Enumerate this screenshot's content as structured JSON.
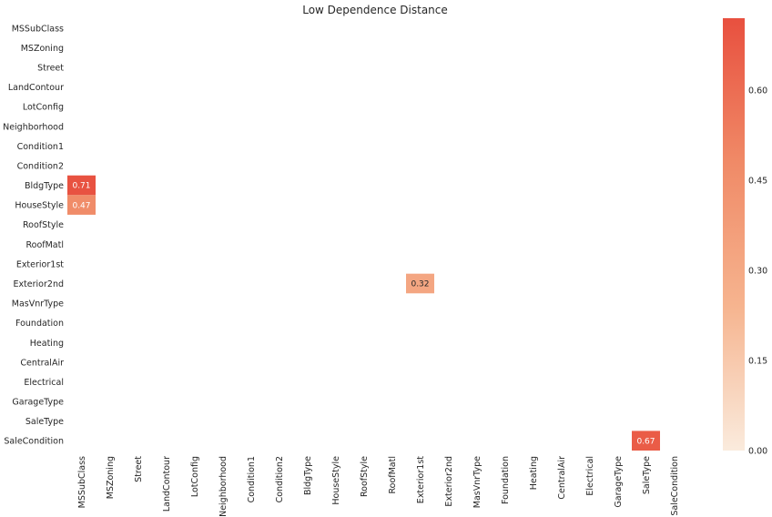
{
  "chart_data": {
    "type": "heatmap",
    "title": "Low Dependence Distance",
    "rows": [
      "MSSubClass",
      "MSZoning",
      "Street",
      "LandContour",
      "LotConfig",
      "Neighborhood",
      "Condition1",
      "Condition2",
      "BldgType",
      "HouseStyle",
      "RoofStyle",
      "RoofMatl",
      "Exterior1st",
      "Exterior2nd",
      "MasVnrType",
      "Foundation",
      "Heating",
      "CentralAir",
      "Electrical",
      "GarageType",
      "SaleType",
      "SaleCondition"
    ],
    "columns": [
      "MSSubClass",
      "MSZoning",
      "Street",
      "LandContour",
      "LotConfig",
      "Neighborhood",
      "Condition1",
      "Condition2",
      "BldgType",
      "HouseStyle",
      "RoofStyle",
      "RoofMatl",
      "Exterior1st",
      "Exterior2nd",
      "MasVnrType",
      "Foundation",
      "Heating",
      "CentralAir",
      "Electrical",
      "GarageType",
      "SaleType",
      "SaleCondition"
    ],
    "cells": [
      {
        "row": "BldgType",
        "col": "MSSubClass",
        "value": 0.71,
        "label": "0.71"
      },
      {
        "row": "HouseStyle",
        "col": "MSSubClass",
        "value": 0.47,
        "label": "0.47"
      },
      {
        "row": "Exterior2nd",
        "col": "Exterior1st",
        "value": 0.32,
        "label": "0.32"
      },
      {
        "row": "SaleCondition",
        "col": "SaleType",
        "value": 0.67,
        "label": "0.67"
      }
    ],
    "colorbar": {
      "vmin": 0.0,
      "vmax": 0.72,
      "ticks": [
        0.0,
        0.15,
        0.3,
        0.45,
        0.6
      ],
      "tick_labels": [
        "0.00",
        "0.15",
        "0.30",
        "0.45",
        "0.60"
      ],
      "colors": [
        "#faebdd",
        "#f6b48f",
        "#f08a67",
        "#e8503f"
      ]
    },
    "grid": false
  }
}
